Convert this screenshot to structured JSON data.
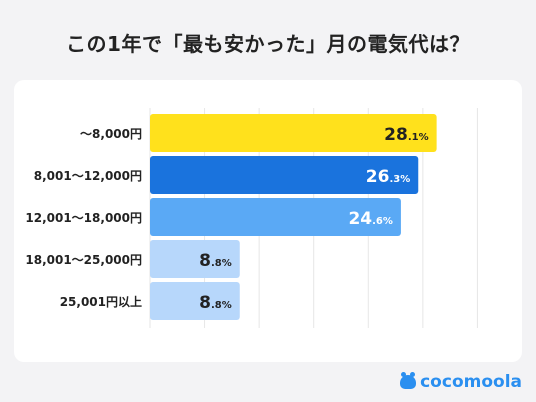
{
  "title": "この1年で「最も安かった」月の電気代は？",
  "brand": "cocomoola",
  "chart_data": {
    "type": "bar",
    "orientation": "horizontal",
    "categories": [
      "〜8,000円",
      "8,001〜12,000円",
      "12,001〜18,000円",
      "18,001〜25,000円",
      "25,001円以上"
    ],
    "values": [
      28.1,
      26.3,
      24.6,
      8.8,
      8.8
    ],
    "value_labels": [
      {
        "int": "28",
        "dec": ".1%"
      },
      {
        "int": "26",
        "dec": ".3%"
      },
      {
        "int": "24",
        "dec": ".6%"
      },
      {
        "int": "8",
        "dec": ".8%"
      },
      {
        "int": "8",
        "dec": ".8%"
      }
    ],
    "colors": [
      "#ffe11c",
      "#1a73dd",
      "#5aa9f5",
      "#b7d7fb",
      "#b7d7fb"
    ],
    "label_colors": [
      "#222222",
      "#ffffff",
      "#ffffff",
      "#222222",
      "#222222"
    ],
    "xlim": [
      0,
      30
    ],
    "grid": true,
    "legend": "none"
  }
}
